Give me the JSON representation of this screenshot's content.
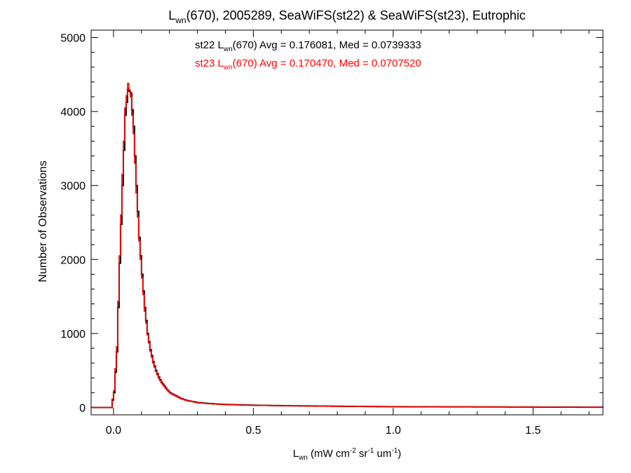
{
  "chart_data": {
    "type": "line",
    "title": {
      "prefix": "L",
      "sub": "wn",
      "suffix": "(670), 2005289, SeaWiFS(st22) & SeaWiFS(st23), Eutrophic"
    },
    "xlabel": {
      "prefix": "L",
      "sub": "wn",
      "p1": " (mW cm",
      "sup1": "-2",
      "p2": " sr",
      "sup2": "-1",
      "p3": " um",
      "sup3": "-1",
      "p4": ")"
    },
    "ylabel": "Number of Observations",
    "xlim": [
      -0.08,
      1.75
    ],
    "ylim": [
      -100,
      5100
    ],
    "x_ticks": [
      "0.0",
      "0.5",
      "1.0",
      "1.5"
    ],
    "x_tick_values": [
      0.0,
      0.5,
      1.0,
      1.5
    ],
    "y_ticks": [
      "0",
      "1000",
      "2000",
      "3000",
      "4000",
      "5000"
    ],
    "y_tick_values": [
      0,
      1000,
      2000,
      3000,
      4000,
      5000
    ],
    "grid": false,
    "step_style": "histogram",
    "annotations": [
      {
        "color": "#000000",
        "prefix": "st22 L",
        "sub": "wn",
        "suffix": "(670) Avg = 0.176081, Med = 0.0739333"
      },
      {
        "color": "#ff0000",
        "prefix": "st23 L",
        "sub": "wn",
        "suffix": "(670) Avg = 0.170470, Med = 0.0707520"
      }
    ],
    "series": [
      {
        "color": "#000000",
        "x": [
          -0.01,
          0.0,
          0.01,
          0.02,
          0.03,
          0.04,
          0.05,
          0.06,
          0.07,
          0.08,
          0.09,
          0.1,
          0.11,
          0.12,
          0.13,
          0.14,
          0.15,
          0.16,
          0.17,
          0.18,
          0.19,
          0.2,
          0.22,
          0.24,
          0.26,
          0.28,
          0.3,
          0.35,
          0.4,
          0.45,
          0.5,
          0.6,
          0.7,
          0.8,
          0.9,
          1.0,
          1.2,
          1.4,
          1.6,
          1.75
        ],
        "values": [
          0,
          200,
          750,
          1950,
          3000,
          3950,
          4300,
          4250,
          3800,
          3000,
          2300,
          1800,
          1350,
          1000,
          780,
          620,
          500,
          410,
          340,
          290,
          240,
          200,
          160,
          120,
          95,
          80,
          65,
          50,
          40,
          35,
          30,
          24,
          20,
          16,
          13,
          10,
          8,
          6,
          4,
          3
        ]
      },
      {
        "color": "#ff0000",
        "x": [
          -0.01,
          0.0,
          0.01,
          0.02,
          0.03,
          0.04,
          0.05,
          0.06,
          0.07,
          0.08,
          0.09,
          0.1,
          0.11,
          0.12,
          0.13,
          0.14,
          0.15,
          0.16,
          0.17,
          0.18,
          0.19,
          0.2,
          0.22,
          0.24,
          0.26,
          0.28,
          0.3,
          0.35,
          0.4,
          0.45,
          0.5,
          0.6,
          0.7,
          0.8,
          0.9,
          1.0,
          1.2,
          1.4,
          1.6,
          1.75
        ],
        "values": [
          0,
          230,
          820,
          2050,
          3150,
          4050,
          4380,
          4200,
          3700,
          2900,
          2250,
          1750,
          1300,
          980,
          760,
          600,
          485,
          395,
          330,
          280,
          235,
          195,
          155,
          118,
          92,
          78,
          62,
          48,
          38,
          33,
          28,
          23,
          19,
          15,
          12,
          10,
          8,
          6,
          4,
          3
        ]
      }
    ]
  }
}
